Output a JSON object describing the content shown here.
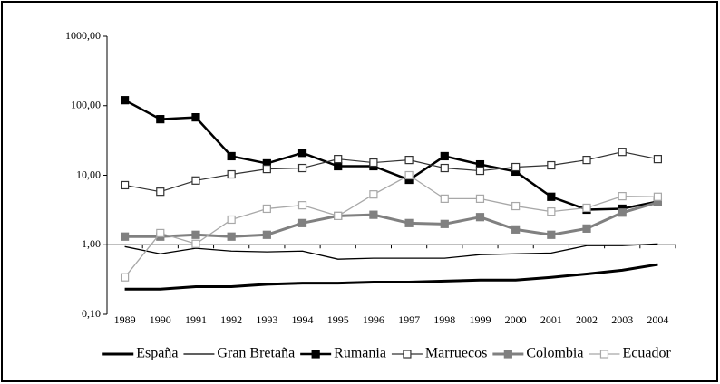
{
  "chart_data": {
    "type": "line",
    "categories": [
      "1989",
      "1990",
      "1991",
      "1992",
      "1993",
      "1994",
      "1995",
      "1996",
      "1997",
      "1998",
      "1999",
      "2000",
      "2001",
      "2002",
      "2003",
      "2004"
    ],
    "log_scale": true,
    "ylim": [
      0.1,
      1000
    ],
    "yticks": [
      {
        "value": 0.1,
        "label": "0,10"
      },
      {
        "value": 1,
        "label": "1,00"
      },
      {
        "value": 10,
        "label": "10,00"
      },
      {
        "value": 100,
        "label": "100,00"
      },
      {
        "value": 1000,
        "label": "1000,00"
      }
    ],
    "legend": "bottom",
    "series": [
      {
        "name": "España",
        "color": "#000000",
        "line_width": 3,
        "marker": "none",
        "values": [
          0.23,
          0.23,
          0.25,
          0.25,
          0.27,
          0.28,
          0.28,
          0.29,
          0.29,
          0.3,
          0.31,
          0.31,
          0.34,
          0.38,
          0.43,
          0.52
        ]
      },
      {
        "name": "Gran Bretaña",
        "color": "#000000",
        "line_width": 1.3,
        "marker": "none",
        "values": [
          0.94,
          0.74,
          0.89,
          0.81,
          0.79,
          0.81,
          0.62,
          0.64,
          0.64,
          0.64,
          0.72,
          0.74,
          0.76,
          0.97,
          0.97,
          1.03
        ]
      },
      {
        "name": "Rumania",
        "color": "#000000",
        "line_width": 2.5,
        "marker": "filled",
        "values": [
          120,
          64,
          68,
          18.8,
          14.8,
          21,
          13.5,
          13.5,
          8.6,
          18.8,
          14.3,
          11.3,
          4.9,
          3.2,
          3.3,
          4.2
        ]
      },
      {
        "name": "Marruecos",
        "color": "#333333",
        "line_width": 1.2,
        "marker": "open",
        "values": [
          7.2,
          5.8,
          8.4,
          10.3,
          12.3,
          12.7,
          17.1,
          15.2,
          16.6,
          12.7,
          11.6,
          13.1,
          13.9,
          16.6,
          21.7,
          17.1
        ]
      },
      {
        "name": "Colombia",
        "color": "#808080",
        "line_width": 3,
        "marker": "filled",
        "values": [
          1.31,
          1.31,
          1.39,
          1.31,
          1.39,
          2.05,
          2.6,
          2.7,
          2.05,
          1.99,
          2.5,
          1.66,
          1.39,
          1.71,
          2.9,
          4.08
        ]
      },
      {
        "name": "Ecuador",
        "color": "#a8a8a8",
        "line_width": 1.3,
        "marker": "open",
        "values": [
          0.34,
          1.47,
          1.03,
          2.3,
          3.3,
          3.7,
          2.6,
          5.3,
          10,
          4.6,
          4.6,
          3.6,
          3.0,
          3.4,
          5.0,
          4.9
        ]
      }
    ]
  }
}
